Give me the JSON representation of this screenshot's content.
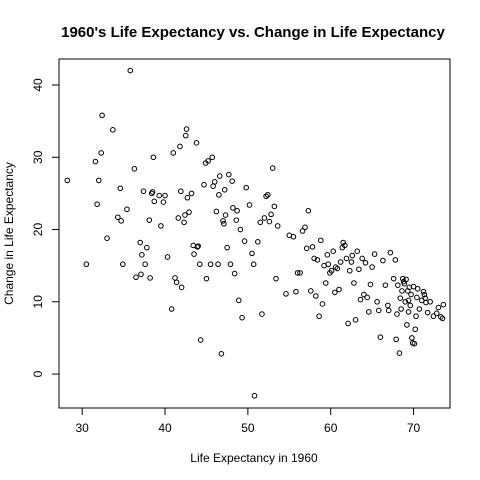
{
  "chart_data": {
    "type": "scatter",
    "title": "1960's Life Expectancy vs. Change in Life Expectancy",
    "xlabel": "Life Expectancy in 1960",
    "ylabel": "Change in Life Expectancy",
    "xlim": [
      27.2,
      74.4
    ],
    "ylim": [
      -4.7,
      43.6
    ],
    "xticks": [
      30,
      40,
      50,
      60,
      70
    ],
    "yticks": [
      0,
      10,
      20,
      30,
      40
    ],
    "grid": false,
    "legend": "none",
    "points": [
      [
        28.2,
        26.8
      ],
      [
        30.5,
        15.2
      ],
      [
        31.6,
        29.4
      ],
      [
        31.8,
        23.5
      ],
      [
        32.0,
        26.8
      ],
      [
        32.3,
        30.6
      ],
      [
        32.4,
        35.8
      ],
      [
        33.0,
        18.8
      ],
      [
        33.7,
        33.8
      ],
      [
        34.3,
        21.7
      ],
      [
        34.6,
        25.7
      ],
      [
        34.7,
        21.2
      ],
      [
        34.9,
        15.2
      ],
      [
        35.4,
        22.8
      ],
      [
        35.8,
        42.0
      ],
      [
        36.3,
        28.4
      ],
      [
        36.5,
        13.4
      ],
      [
        37.0,
        18.2
      ],
      [
        37.1,
        13.8
      ],
      [
        37.2,
        16.5
      ],
      [
        37.4,
        25.3
      ],
      [
        37.6,
        15.2
      ],
      [
        37.8,
        17.5
      ],
      [
        38.1,
        21.3
      ],
      [
        38.2,
        13.3
      ],
      [
        38.4,
        25.0
      ],
      [
        38.5,
        25.2
      ],
      [
        38.6,
        30.0
      ],
      [
        38.7,
        23.9
      ],
      [
        39.3,
        24.7
      ],
      [
        39.5,
        20.5
      ],
      [
        39.8,
        23.8
      ],
      [
        40.0,
        24.7
      ],
      [
        40.3,
        16.2
      ],
      [
        40.8,
        9.0
      ],
      [
        41.0,
        30.6
      ],
      [
        41.2,
        13.3
      ],
      [
        41.4,
        12.7
      ],
      [
        41.6,
        21.6
      ],
      [
        41.8,
        31.5
      ],
      [
        41.9,
        25.3
      ],
      [
        42.0,
        12.0
      ],
      [
        42.3,
        21.0
      ],
      [
        42.4,
        22.0
      ],
      [
        42.5,
        33.0
      ],
      [
        42.6,
        33.9
      ],
      [
        42.7,
        24.4
      ],
      [
        42.9,
        22.4
      ],
      [
        43.2,
        25.0
      ],
      [
        43.4,
        17.8
      ],
      [
        43.5,
        16.6
      ],
      [
        43.8,
        32.0
      ],
      [
        43.9,
        17.6
      ],
      [
        44.0,
        17.7
      ],
      [
        44.2,
        15.2
      ],
      [
        44.3,
        4.7
      ],
      [
        44.7,
        26.2
      ],
      [
        44.9,
        29.2
      ],
      [
        45.0,
        13.2
      ],
      [
        45.2,
        29.5
      ],
      [
        45.5,
        15.2
      ],
      [
        45.7,
        30.0
      ],
      [
        45.8,
        26.0
      ],
      [
        46.0,
        26.6
      ],
      [
        46.2,
        22.5
      ],
      [
        46.4,
        15.2
      ],
      [
        46.5,
        24.8
      ],
      [
        46.6,
        27.4
      ],
      [
        46.8,
        2.8
      ],
      [
        47.0,
        21.2
      ],
      [
        47.1,
        20.8
      ],
      [
        47.2,
        25.5
      ],
      [
        47.3,
        22.0
      ],
      [
        47.5,
        17.5
      ],
      [
        47.7,
        27.6
      ],
      [
        47.9,
        15.2
      ],
      [
        48.1,
        26.7
      ],
      [
        48.2,
        23.0
      ],
      [
        48.4,
        13.9
      ],
      [
        48.6,
        21.3
      ],
      [
        48.7,
        22.6
      ],
      [
        48.9,
        10.2
      ],
      [
        49.1,
        20.0
      ],
      [
        49.3,
        7.8
      ],
      [
        49.6,
        18.4
      ],
      [
        49.8,
        25.8
      ],
      [
        50.2,
        23.4
      ],
      [
        50.5,
        16.7
      ],
      [
        50.7,
        15.2
      ],
      [
        50.8,
        -3.0
      ],
      [
        51.2,
        18.3
      ],
      [
        51.5,
        21.0
      ],
      [
        51.7,
        8.3
      ],
      [
        52.0,
        21.6
      ],
      [
        52.2,
        24.6
      ],
      [
        52.4,
        24.8
      ],
      [
        52.6,
        21.1
      ],
      [
        52.8,
        22.1
      ],
      [
        53.0,
        28.5
      ],
      [
        53.2,
        23.2
      ],
      [
        53.4,
        13.2
      ],
      [
        53.6,
        20.5
      ],
      [
        54.6,
        11.1
      ],
      [
        55.0,
        19.2
      ],
      [
        55.5,
        19.0
      ],
      [
        55.8,
        11.4
      ],
      [
        56.0,
        14.0
      ],
      [
        56.3,
        14.0
      ],
      [
        56.6,
        19.8
      ],
      [
        56.9,
        20.3
      ],
      [
        57.1,
        17.4
      ],
      [
        57.3,
        22.6
      ],
      [
        57.6,
        11.5
      ],
      [
        57.8,
        17.6
      ],
      [
        58.0,
        16.0
      ],
      [
        58.2,
        10.8
      ],
      [
        58.4,
        15.8
      ],
      [
        58.6,
        8.0
      ],
      [
        58.8,
        18.5
      ],
      [
        59.0,
        9.7
      ],
      [
        59.2,
        15.0
      ],
      [
        59.4,
        12.6
      ],
      [
        59.6,
        16.5
      ],
      [
        59.7,
        15.2
      ],
      [
        59.9,
        14.0
      ],
      [
        60.1,
        14.3
      ],
      [
        60.3,
        17.0
      ],
      [
        60.5,
        11.3
      ],
      [
        60.6,
        14.8
      ],
      [
        60.8,
        14.6
      ],
      [
        61.0,
        11.7
      ],
      [
        61.2,
        15.5
      ],
      [
        61.4,
        17.5
      ],
      [
        61.5,
        18.2
      ],
      [
        61.7,
        17.8
      ],
      [
        61.9,
        16.0
      ],
      [
        62.1,
        7.0
      ],
      [
        62.3,
        14.3
      ],
      [
        62.5,
        15.5
      ],
      [
        62.6,
        16.4
      ],
      [
        62.8,
        12.6
      ],
      [
        63.0,
        7.5
      ],
      [
        63.2,
        17.0
      ],
      [
        63.4,
        14.5
      ],
      [
        63.6,
        10.3
      ],
      [
        63.8,
        16.0
      ],
      [
        64.0,
        11.0
      ],
      [
        64.2,
        15.4
      ],
      [
        64.4,
        10.6
      ],
      [
        64.6,
        8.6
      ],
      [
        64.8,
        12.4
      ],
      [
        65.0,
        14.8
      ],
      [
        65.3,
        16.6
      ],
      [
        65.6,
        10.0
      ],
      [
        65.8,
        8.8
      ],
      [
        66.0,
        5.1
      ],
      [
        66.3,
        15.7
      ],
      [
        66.6,
        12.3
      ],
      [
        67.0,
        8.8
      ],
      [
        67.2,
        16.8
      ],
      [
        67.6,
        13.2
      ],
      [
        67.8,
        15.8
      ],
      [
        67.9,
        4.8
      ],
      [
        68.0,
        8.3
      ],
      [
        68.1,
        12.3
      ],
      [
        68.3,
        2.9
      ],
      [
        68.4,
        10.5
      ],
      [
        68.5,
        9.0
      ],
      [
        68.6,
        11.5
      ],
      [
        68.7,
        13.2
      ],
      [
        68.8,
        12.8
      ],
      [
        68.9,
        12.5
      ],
      [
        69.0,
        10.0
      ],
      [
        69.1,
        13.1
      ],
      [
        69.2,
        6.8
      ],
      [
        69.3,
        11.5
      ],
      [
        69.4,
        10.2
      ],
      [
        69.5,
        12.0
      ],
      [
        69.6,
        9.5
      ],
      [
        69.7,
        11.0
      ],
      [
        69.8,
        5.0
      ],
      [
        69.9,
        4.3
      ],
      [
        70.0,
        12.1
      ],
      [
        70.1,
        4.2
      ],
      [
        70.2,
        6.2
      ],
      [
        70.3,
        8.0
      ],
      [
        70.5,
        11.8
      ],
      [
        70.7,
        9.0
      ],
      [
        71.0,
        10.2
      ],
      [
        71.2,
        11.4
      ],
      [
        71.3,
        11.0
      ],
      [
        71.5,
        9.9
      ],
      [
        71.7,
        8.5
      ],
      [
        72.0,
        10.0
      ],
      [
        72.4,
        8.0
      ],
      [
        72.8,
        8.4
      ],
      [
        73.0,
        9.2
      ],
      [
        73.3,
        7.9
      ],
      [
        73.5,
        7.7
      ],
      [
        73.6,
        9.6
      ],
      [
        71.4,
        10.5
      ],
      [
        69.4,
        8.6
      ],
      [
        70.4,
        10.6
      ],
      [
        66.9,
        9.5
      ]
    ]
  }
}
